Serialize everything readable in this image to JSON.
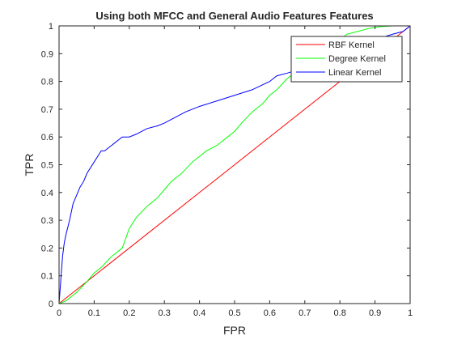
{
  "chart_data": {
    "type": "line",
    "title": "Using both MFCC and General Audio Features Features",
    "xlabel": "FPR",
    "ylabel": "TPR",
    "xlim": [
      0,
      1
    ],
    "ylim": [
      0,
      1
    ],
    "xticks": [
      0,
      0.1,
      0.2,
      0.3,
      0.4,
      0.5,
      0.6,
      0.7,
      0.8,
      0.9,
      1
    ],
    "yticks": [
      0,
      0.1,
      0.2,
      0.3,
      0.4,
      0.5,
      0.6,
      0.7,
      0.8,
      0.9,
      1
    ],
    "xtick_labels": [
      "0",
      "0.1",
      "0.2",
      "0.3",
      "0.4",
      "0.5",
      "0.6",
      "0.7",
      "0.8",
      "0.9",
      "1"
    ],
    "ytick_labels": [
      "0",
      "0.1",
      "0.2",
      "0.3",
      "0.4",
      "0.5",
      "0.6",
      "0.7",
      "0.8",
      "0.9",
      "1"
    ],
    "grid": false,
    "legend_position": "top-right",
    "series": [
      {
        "name": "RBF Kernel",
        "color": "#ff0000",
        "x": [
          0,
          1
        ],
        "y": [
          0,
          1
        ]
      },
      {
        "name": "Degree Kernel",
        "color": "#00ff00",
        "x": [
          0,
          0.02,
          0.05,
          0.08,
          0.1,
          0.12,
          0.15,
          0.18,
          0.2,
          0.22,
          0.25,
          0.28,
          0.3,
          0.32,
          0.35,
          0.38,
          0.4,
          0.42,
          0.45,
          0.48,
          0.5,
          0.52,
          0.55,
          0.58,
          0.6,
          0.62,
          0.65,
          0.68,
          0.7,
          0.72,
          0.75,
          0.78,
          0.8,
          0.82,
          0.85,
          0.88,
          0.9,
          0.92,
          0.95,
          0.98,
          1.0
        ],
        "y": [
          0,
          0.01,
          0.04,
          0.08,
          0.11,
          0.13,
          0.17,
          0.2,
          0.27,
          0.31,
          0.35,
          0.38,
          0.41,
          0.44,
          0.47,
          0.51,
          0.53,
          0.55,
          0.57,
          0.6,
          0.62,
          0.65,
          0.69,
          0.72,
          0.75,
          0.77,
          0.81,
          0.84,
          0.87,
          0.89,
          0.91,
          0.93,
          0.95,
          0.97,
          0.98,
          0.99,
          0.995,
          0.998,
          1.0,
          1.0,
          1.0
        ]
      },
      {
        "name": "Linear Kernel",
        "color": "#0000ff",
        "x": [
          0,
          0.003,
          0.007,
          0.01,
          0.015,
          0.02,
          0.03,
          0.04,
          0.05,
          0.06,
          0.07,
          0.08,
          0.09,
          0.1,
          0.11,
          0.12,
          0.13,
          0.14,
          0.15,
          0.16,
          0.17,
          0.18,
          0.2,
          0.22,
          0.25,
          0.28,
          0.3,
          0.33,
          0.36,
          0.4,
          0.45,
          0.5,
          0.55,
          0.6,
          0.62,
          0.65,
          0.7,
          0.75,
          0.8,
          0.85,
          0.9,
          0.95,
          0.98,
          1.0
        ],
        "y": [
          0,
          0.05,
          0.12,
          0.17,
          0.22,
          0.25,
          0.3,
          0.36,
          0.39,
          0.42,
          0.44,
          0.47,
          0.49,
          0.51,
          0.53,
          0.55,
          0.55,
          0.56,
          0.57,
          0.58,
          0.59,
          0.6,
          0.6,
          0.61,
          0.63,
          0.64,
          0.65,
          0.67,
          0.69,
          0.71,
          0.73,
          0.75,
          0.77,
          0.8,
          0.82,
          0.83,
          0.85,
          0.87,
          0.89,
          0.92,
          0.95,
          0.97,
          0.98,
          1.0
        ]
      }
    ]
  }
}
